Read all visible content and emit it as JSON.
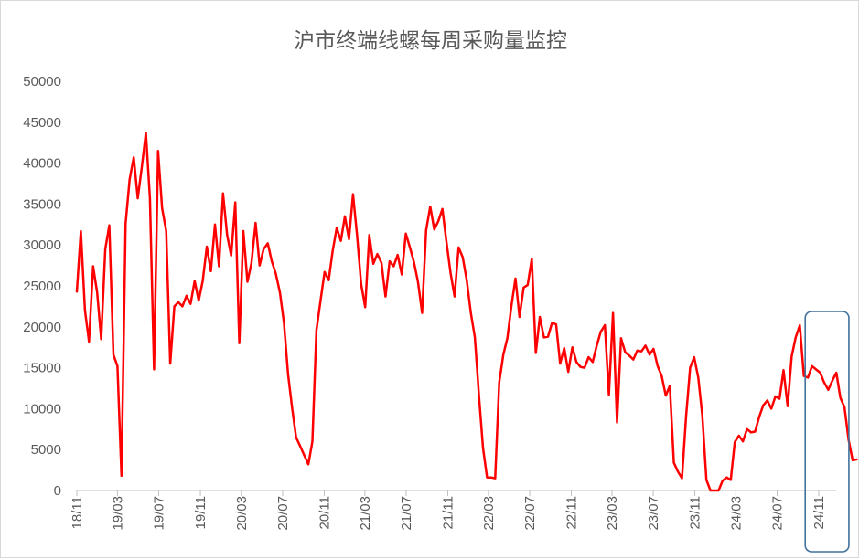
{
  "chart_data": {
    "type": "line",
    "title": "沪市终端线螺每周采购量监控",
    "xlabel": "",
    "ylabel": "",
    "ylim": [
      0,
      50000
    ],
    "yticks": [
      0,
      5000,
      10000,
      15000,
      20000,
      25000,
      30000,
      35000,
      40000,
      45000,
      50000
    ],
    "grid": false,
    "legend": "none",
    "x_tick_labels": [
      "18/11",
      "19/03",
      "19/07",
      "19/11",
      "20/03",
      "20/07",
      "20/11",
      "21/03",
      "21/07",
      "21/11",
      "22/03",
      "22/07",
      "22/11",
      "23/03",
      "23/07",
      "23/11",
      "24/03",
      "24/07",
      "24/11"
    ],
    "x_tick_dates": [
      "2018-11-01",
      "2019-03-01",
      "2019-07-01",
      "2019-11-01",
      "2020-03-01",
      "2020-07-01",
      "2020-11-01",
      "2021-03-01",
      "2021-07-01",
      "2021-11-01",
      "2022-03-01",
      "2022-07-01",
      "2022-11-01",
      "2023-03-01",
      "2023-07-01",
      "2023-11-01",
      "2024-03-01",
      "2024-07-01",
      "2024-11-01"
    ],
    "highlight": {
      "from": "2024-09-22",
      "to": "2025-01-29",
      "color": "#41719c"
    },
    "series": [
      {
        "color": "#ff0000",
        "points": [
          [
            "2018-11-01",
            24300
          ],
          [
            "2018-11-13",
            31700
          ],
          [
            "2018-11-25",
            22000
          ],
          [
            "2018-12-07",
            18200
          ],
          [
            "2018-12-19",
            27400
          ],
          [
            "2018-12-31",
            24200
          ],
          [
            "2019-01-12",
            18500
          ],
          [
            "2019-01-24",
            29500
          ],
          [
            "2019-02-05",
            32400
          ],
          [
            "2019-02-17",
            16600
          ],
          [
            "2019-03-01",
            15200
          ],
          [
            "2019-03-13",
            1800
          ],
          [
            "2019-03-25",
            32600
          ],
          [
            "2019-04-06",
            38000
          ],
          [
            "2019-04-18",
            40700
          ],
          [
            "2019-04-30",
            35700
          ],
          [
            "2019-05-12",
            39500
          ],
          [
            "2019-05-24",
            43700
          ],
          [
            "2019-06-05",
            35700
          ],
          [
            "2019-06-17",
            14800
          ],
          [
            "2019-06-29",
            41500
          ],
          [
            "2019-07-11",
            34500
          ],
          [
            "2019-07-23",
            31700
          ],
          [
            "2019-08-04",
            15500
          ],
          [
            "2019-08-16",
            22500
          ],
          [
            "2019-08-28",
            23000
          ],
          [
            "2019-09-09",
            22500
          ],
          [
            "2019-09-21",
            23800
          ],
          [
            "2019-10-03",
            22800
          ],
          [
            "2019-10-15",
            25600
          ],
          [
            "2019-10-27",
            23200
          ],
          [
            "2019-11-08",
            25600
          ],
          [
            "2019-11-20",
            29800
          ],
          [
            "2019-12-02",
            26800
          ],
          [
            "2019-12-14",
            32500
          ],
          [
            "2019-12-26",
            27400
          ],
          [
            "2020-01-07",
            36300
          ],
          [
            "2020-01-19",
            31200
          ],
          [
            "2020-01-31",
            28700
          ],
          [
            "2020-02-12",
            35200
          ],
          [
            "2020-02-24",
            18000
          ],
          [
            "2020-03-07",
            31700
          ],
          [
            "2020-03-19",
            25500
          ],
          [
            "2020-03-31",
            27800
          ],
          [
            "2020-04-12",
            32700
          ],
          [
            "2020-04-24",
            27500
          ],
          [
            "2020-05-06",
            29500
          ],
          [
            "2020-05-18",
            30200
          ],
          [
            "2020-05-30",
            28000
          ],
          [
            "2020-06-11",
            26500
          ],
          [
            "2020-06-23",
            24200
          ],
          [
            "2020-07-05",
            20500
          ],
          [
            "2020-07-17",
            14200
          ],
          [
            "2020-07-29",
            10100
          ],
          [
            "2020-08-10",
            6500
          ],
          [
            "2020-08-22",
            5400
          ],
          [
            "2020-09-03",
            4300
          ],
          [
            "2020-09-15",
            3200
          ],
          [
            "2020-09-27",
            6000
          ],
          [
            "2020-10-09",
            19600
          ],
          [
            "2020-10-21",
            23200
          ],
          [
            "2020-11-02",
            26700
          ],
          [
            "2020-11-14",
            25700
          ],
          [
            "2020-11-26",
            29300
          ],
          [
            "2020-12-08",
            32100
          ],
          [
            "2020-12-20",
            30500
          ],
          [
            "2021-01-01",
            33500
          ],
          [
            "2021-01-13",
            30700
          ],
          [
            "2021-01-25",
            36200
          ],
          [
            "2021-02-06",
            31200
          ],
          [
            "2021-02-18",
            25200
          ],
          [
            "2021-03-02",
            22400
          ],
          [
            "2021-03-14",
            31200
          ],
          [
            "2021-03-26",
            27700
          ],
          [
            "2021-04-07",
            28900
          ],
          [
            "2021-04-19",
            27800
          ],
          [
            "2021-05-01",
            23700
          ],
          [
            "2021-05-13",
            28000
          ],
          [
            "2021-05-25",
            27400
          ],
          [
            "2021-06-06",
            28800
          ],
          [
            "2021-06-18",
            26400
          ],
          [
            "2021-06-30",
            31400
          ],
          [
            "2021-07-12",
            29700
          ],
          [
            "2021-07-24",
            27900
          ],
          [
            "2021-08-05",
            25500
          ],
          [
            "2021-08-17",
            21700
          ],
          [
            "2021-08-29",
            31800
          ],
          [
            "2021-09-10",
            34700
          ],
          [
            "2021-09-22",
            31900
          ],
          [
            "2021-10-04",
            32900
          ],
          [
            "2021-10-16",
            34400
          ],
          [
            "2021-10-28",
            30400
          ],
          [
            "2021-11-09",
            26600
          ],
          [
            "2021-11-21",
            23700
          ],
          [
            "2021-12-03",
            29700
          ],
          [
            "2021-12-15",
            28500
          ],
          [
            "2021-12-27",
            25700
          ],
          [
            "2022-01-08",
            21700
          ],
          [
            "2022-01-20",
            18700
          ],
          [
            "2022-02-01",
            11700
          ],
          [
            "2022-02-13",
            5200
          ],
          [
            "2022-02-25",
            1600
          ],
          [
            "2022-03-09",
            1600
          ],
          [
            "2022-03-21",
            1500
          ],
          [
            "2022-04-02",
            13200
          ],
          [
            "2022-04-14",
            16600
          ],
          [
            "2022-04-26",
            18600
          ],
          [
            "2022-05-08",
            22600
          ],
          [
            "2022-05-20",
            25900
          ],
          [
            "2022-06-01",
            21200
          ],
          [
            "2022-06-13",
            24800
          ],
          [
            "2022-06-25",
            25100
          ],
          [
            "2022-07-07",
            28300
          ],
          [
            "2022-07-19",
            16800
          ],
          [
            "2022-07-31",
            21200
          ],
          [
            "2022-08-12",
            18700
          ],
          [
            "2022-08-24",
            18800
          ],
          [
            "2022-09-05",
            20500
          ],
          [
            "2022-09-17",
            20300
          ],
          [
            "2022-09-29",
            15500
          ],
          [
            "2022-10-11",
            17400
          ],
          [
            "2022-10-23",
            14500
          ],
          [
            "2022-11-04",
            17500
          ],
          [
            "2022-11-16",
            15700
          ],
          [
            "2022-11-28",
            15100
          ],
          [
            "2022-12-10",
            15000
          ],
          [
            "2022-12-22",
            16300
          ],
          [
            "2023-01-03",
            15700
          ],
          [
            "2023-01-15",
            17700
          ],
          [
            "2023-01-27",
            19400
          ],
          [
            "2023-02-08",
            20200
          ],
          [
            "2023-02-20",
            11700
          ],
          [
            "2023-03-04",
            21700
          ],
          [
            "2023-03-16",
            8300
          ],
          [
            "2023-03-28",
            18600
          ],
          [
            "2023-04-09",
            16900
          ],
          [
            "2023-04-21",
            16500
          ],
          [
            "2023-05-03",
            16000
          ],
          [
            "2023-05-15",
            17100
          ],
          [
            "2023-05-27",
            17000
          ],
          [
            "2023-06-08",
            17700
          ],
          [
            "2023-06-20",
            16600
          ],
          [
            "2023-07-02",
            17300
          ],
          [
            "2023-07-14",
            15200
          ],
          [
            "2023-07-26",
            14000
          ],
          [
            "2023-08-07",
            11600
          ],
          [
            "2023-08-19",
            12800
          ],
          [
            "2023-08-31",
            3400
          ],
          [
            "2023-09-12",
            2300
          ],
          [
            "2023-09-24",
            1500
          ],
          [
            "2023-10-06",
            9100
          ],
          [
            "2023-10-18",
            15000
          ],
          [
            "2023-10-30",
            16300
          ],
          [
            "2023-11-11",
            13800
          ],
          [
            "2023-11-23",
            9200
          ],
          [
            "2023-12-05",
            1300
          ],
          [
            "2023-12-17",
            0
          ],
          [
            "2023-12-29",
            0
          ],
          [
            "2024-01-10",
            0
          ],
          [
            "2024-01-22",
            1200
          ],
          [
            "2024-02-03",
            1600
          ],
          [
            "2024-02-15",
            1300
          ],
          [
            "2024-02-27",
            5900
          ],
          [
            "2024-03-10",
            6700
          ],
          [
            "2024-03-22",
            6000
          ],
          [
            "2024-04-03",
            7500
          ],
          [
            "2024-04-15",
            7100
          ],
          [
            "2024-04-27",
            7200
          ],
          [
            "2024-05-09",
            9000
          ],
          [
            "2024-05-21",
            10400
          ],
          [
            "2024-06-02",
            11000
          ],
          [
            "2024-06-14",
            10000
          ],
          [
            "2024-06-26",
            11500
          ],
          [
            "2024-07-08",
            11200
          ],
          [
            "2024-07-20",
            14700
          ],
          [
            "2024-08-01",
            10300
          ],
          [
            "2024-08-13",
            16400
          ],
          [
            "2024-08-25",
            18700
          ],
          [
            "2024-09-06",
            20200
          ],
          [
            "2024-09-18",
            14000
          ],
          [
            "2024-09-30",
            13800
          ],
          [
            "2024-10-12",
            15200
          ],
          [
            "2024-10-24",
            14800
          ],
          [
            "2024-11-05",
            14400
          ],
          [
            "2024-11-17",
            13200
          ],
          [
            "2024-11-29",
            12300
          ],
          [
            "2024-12-11",
            13400
          ],
          [
            "2024-12-23",
            14400
          ],
          [
            "2025-01-04",
            11300
          ],
          [
            "2025-01-16",
            10200
          ],
          [
            "2025-01-28",
            6200
          ],
          [
            "2025-02-09",
            3700
          ],
          [
            "2025-02-21",
            3800
          ]
        ]
      }
    ]
  }
}
